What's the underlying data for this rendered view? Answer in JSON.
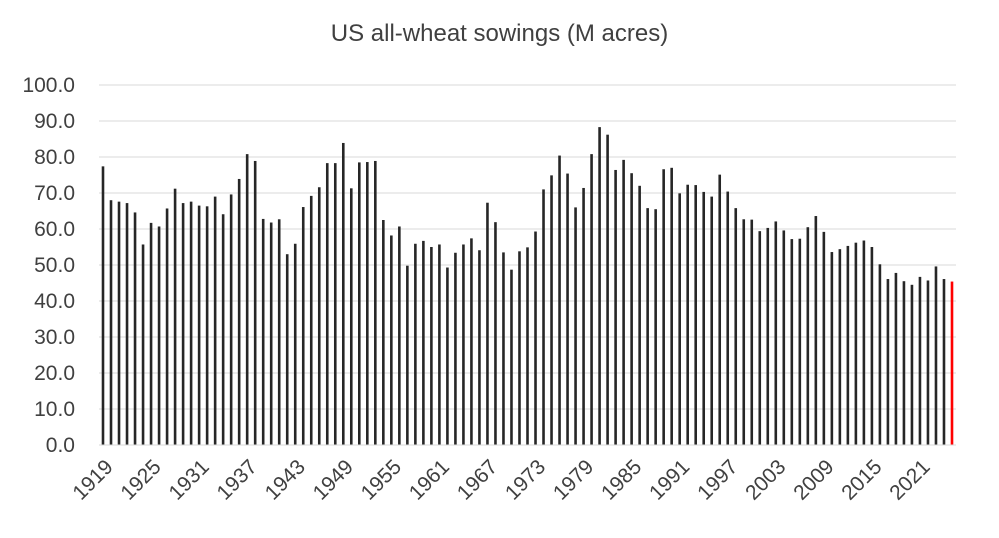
{
  "chart_data": {
    "type": "bar",
    "title": "US all-wheat sowings (M acres)",
    "xlabel": "",
    "ylabel": "",
    "ylim": [
      0,
      100
    ],
    "yticks": [
      "0.0",
      "10.0",
      "20.0",
      "30.0",
      "40.0",
      "50.0",
      "60.0",
      "70.0",
      "80.0",
      "90.0",
      "100.0"
    ],
    "xticks": [
      "1919",
      "1925",
      "1931",
      "1937",
      "1943",
      "1949",
      "1955",
      "1961",
      "1967",
      "1973",
      "1979",
      "1985",
      "1991",
      "1997",
      "2003",
      "2009",
      "2015",
      "2021"
    ],
    "grid": true,
    "bar_color": "#262626",
    "highlight_color": "#ff0000",
    "highlight_index": 106,
    "categories": [
      1919,
      1920,
      1921,
      1922,
      1923,
      1924,
      1925,
      1926,
      1927,
      1928,
      1929,
      1930,
      1931,
      1932,
      1933,
      1934,
      1935,
      1936,
      1937,
      1938,
      1939,
      1940,
      1941,
      1942,
      1943,
      1944,
      1945,
      1946,
      1947,
      1948,
      1949,
      1950,
      1951,
      1952,
      1953,
      1954,
      1955,
      1956,
      1957,
      1958,
      1959,
      1960,
      1961,
      1962,
      1963,
      1964,
      1965,
      1966,
      1967,
      1968,
      1969,
      1970,
      1971,
      1972,
      1973,
      1974,
      1975,
      1976,
      1977,
      1978,
      1979,
      1980,
      1981,
      1982,
      1983,
      1984,
      1985,
      1986,
      1987,
      1988,
      1989,
      1990,
      1991,
      1992,
      1993,
      1994,
      1995,
      1996,
      1997,
      1998,
      1999,
      2000,
      2001,
      2002,
      2003,
      2004,
      2005,
      2006,
      2007,
      2008,
      2009,
      2010,
      2011,
      2012,
      2013,
      2014,
      2015,
      2016,
      2017,
      2018,
      2019,
      2020,
      2021,
      2022,
      2023,
      2024,
      2025
    ],
    "values": [
      77.4,
      68.0,
      67.6,
      67.2,
      64.6,
      55.7,
      61.7,
      60.7,
      65.7,
      71.2,
      67.2,
      67.6,
      66.5,
      66.3,
      69.0,
      64.1,
      69.6,
      73.9,
      80.8,
      78.9,
      62.8,
      61.8,
      62.7,
      53.0,
      55.9,
      66.1,
      69.2,
      71.6,
      78.3,
      78.3,
      83.9,
      71.3,
      78.5,
      78.6,
      78.9,
      62.5,
      58.2,
      60.7,
      49.8,
      55.9,
      56.7,
      55.0,
      55.7,
      49.3,
      53.4,
      55.7,
      57.4,
      54.1,
      67.3,
      61.9,
      53.5,
      48.7,
      53.8,
      54.9,
      59.3,
      71.0,
      74.9,
      80.4,
      75.4,
      66.0,
      71.4,
      80.8,
      88.3,
      86.2,
      76.4,
      79.2,
      75.5,
      72.0,
      65.8,
      65.5,
      76.6,
      77.0,
      69.9,
      72.3,
      72.2,
      70.3,
      69.0,
      75.1,
      70.4,
      65.8,
      62.7,
      62.6,
      59.4,
      60.3,
      62.1,
      59.6,
      57.2,
      57.3,
      60.5,
      63.6,
      59.2,
      53.6,
      54.4,
      55.3,
      56.2,
      56.8,
      55.0,
      50.2,
      46.1,
      47.8,
      45.5,
      44.5,
      46.7,
      45.7,
      49.6,
      46.1,
      45.4
    ]
  }
}
